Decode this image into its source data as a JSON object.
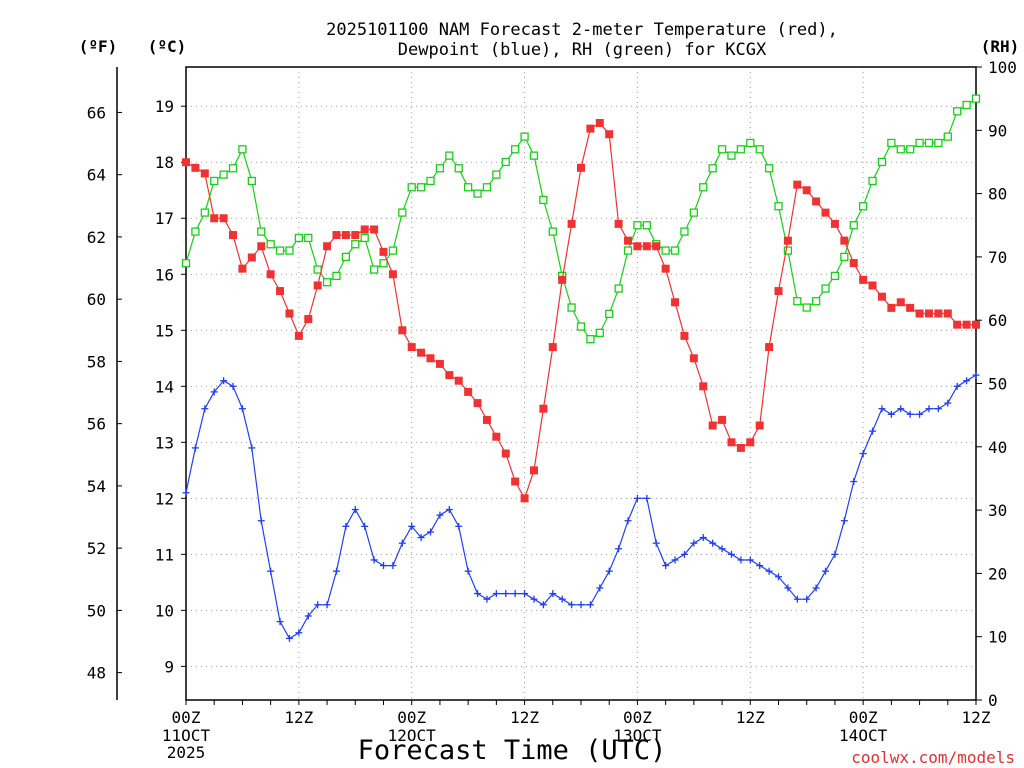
{
  "chart_data": {
    "type": "line",
    "title_line1": "2025101100 NAM Forecast 2-meter Temperature (red),",
    "title_line2": "Dewpoint (blue), RH (green) for KCGX",
    "xlabel": "Forecast Time (UTC)",
    "watermark": "coolwx.com/models",
    "axis_units": {
      "left_outer": "(ºF)",
      "left_inner": "(ºC)",
      "right": "(RH)"
    },
    "x_range_hours": [
      0,
      84
    ],
    "x_ticks": [
      {
        "hour": 0,
        "label": "00Z",
        "sub1": "11OCT",
        "sub2": "2025"
      },
      {
        "hour": 12,
        "label": "12Z",
        "sub1": "",
        "sub2": ""
      },
      {
        "hour": 24,
        "label": "00Z",
        "sub1": "12OCT",
        "sub2": ""
      },
      {
        "hour": 36,
        "label": "12Z",
        "sub1": "",
        "sub2": ""
      },
      {
        "hour": 48,
        "label": "00Z",
        "sub1": "13OCT",
        "sub2": ""
      },
      {
        "hour": 60,
        "label": "12Z",
        "sub1": "",
        "sub2": ""
      },
      {
        "hour": 72,
        "label": "00Z",
        "sub1": "14OCT",
        "sub2": ""
      },
      {
        "hour": 84,
        "label": "12Z",
        "sub1": "",
        "sub2": ""
      }
    ],
    "celsius_range": [
      8.4,
      19.7
    ],
    "celsius_ticks": [
      "9",
      "10",
      "11",
      "12",
      "13",
      "14",
      "15",
      "16",
      "17",
      "18",
      "19"
    ],
    "fahrenheit_ticks": [
      "48",
      "50",
      "52",
      "54",
      "56",
      "58",
      "60",
      "62",
      "64",
      "66"
    ],
    "rh_range": [
      0,
      100
    ],
    "rh_ticks": [
      "0",
      "10",
      "20",
      "30",
      "40",
      "50",
      "60",
      "70",
      "80",
      "90",
      "100"
    ],
    "colors": {
      "temperature": "#f03232",
      "dewpoint": "#2040f0",
      "rh": "#18d018",
      "grid": "#a0a0a0"
    },
    "series": [
      {
        "name": "Temperature",
        "units": "C",
        "marker": "filled-square",
        "x_hours": [
          0,
          1,
          2,
          3,
          4,
          5,
          6,
          7,
          8,
          9,
          10,
          11,
          12,
          13,
          14,
          15,
          16,
          17,
          18,
          19,
          20,
          21,
          22,
          23,
          24,
          25,
          26,
          27,
          28,
          29,
          30,
          31,
          32,
          33,
          34,
          35,
          36,
          37,
          38,
          39,
          40,
          41,
          42,
          43,
          44,
          45,
          46,
          47,
          48,
          49,
          50,
          51,
          52,
          53,
          54,
          55,
          56,
          57,
          58,
          59,
          60,
          61,
          62,
          63,
          64,
          65,
          66,
          67,
          68,
          69,
          70,
          71,
          72,
          73,
          74,
          75,
          76,
          77,
          78,
          79,
          80,
          81,
          82,
          83,
          84
        ],
        "values": [
          18.0,
          17.9,
          17.8,
          17.0,
          17.0,
          16.7,
          16.1,
          16.3,
          16.5,
          16.0,
          15.7,
          15.3,
          14.9,
          15.2,
          15.8,
          16.5,
          16.7,
          16.7,
          16.7,
          16.8,
          16.8,
          16.4,
          16.0,
          15.0,
          14.7,
          14.6,
          14.5,
          14.4,
          14.2,
          14.1,
          13.9,
          13.7,
          13.4,
          13.1,
          12.8,
          12.3,
          12.0,
          12.5,
          13.6,
          14.7,
          15.9,
          16.9,
          17.9,
          18.6,
          18.7,
          18.5,
          16.9,
          16.6,
          16.5,
          16.5,
          16.5,
          16.1,
          15.5,
          14.9,
          14.5,
          14.0,
          13.3,
          13.4,
          13.0,
          12.9,
          13.0,
          13.3,
          14.7,
          15.7,
          16.6,
          17.6,
          17.5,
          17.3,
          17.1,
          16.9,
          16.6,
          16.2,
          15.9,
          15.8,
          15.6,
          15.4,
          15.5,
          15.4,
          15.3,
          15.3,
          15.3,
          15.3,
          15.1,
          15.1,
          15.1
        ]
      },
      {
        "name": "Dewpoint",
        "units": "C",
        "marker": "plus",
        "x_hours": [
          0,
          1,
          2,
          3,
          4,
          5,
          6,
          7,
          8,
          9,
          10,
          11,
          12,
          13,
          14,
          15,
          16,
          17,
          18,
          19,
          20,
          21,
          22,
          23,
          24,
          25,
          26,
          27,
          28,
          29,
          30,
          31,
          32,
          33,
          34,
          35,
          36,
          37,
          38,
          39,
          40,
          41,
          42,
          43,
          44,
          45,
          46,
          47,
          48,
          49,
          50,
          51,
          52,
          53,
          54,
          55,
          56,
          57,
          58,
          59,
          60,
          61,
          62,
          63,
          64,
          65,
          66,
          67,
          68,
          69,
          70,
          71,
          72,
          73,
          74,
          75,
          76,
          77,
          78,
          79,
          80,
          81,
          82,
          83,
          84
        ],
        "values": [
          12.1,
          12.9,
          13.6,
          13.9,
          14.1,
          14.0,
          13.6,
          12.9,
          11.6,
          10.7,
          9.8,
          9.5,
          9.6,
          9.9,
          10.1,
          10.1,
          10.7,
          11.5,
          11.8,
          11.5,
          10.9,
          10.8,
          10.8,
          11.2,
          11.5,
          11.3,
          11.4,
          11.7,
          11.8,
          11.5,
          10.7,
          10.3,
          10.2,
          10.3,
          10.3,
          10.3,
          10.3,
          10.2,
          10.1,
          10.3,
          10.2,
          10.1,
          10.1,
          10.1,
          10.4,
          10.7,
          11.1,
          11.6,
          12.0,
          12.0,
          11.2,
          10.8,
          10.9,
          11.0,
          11.2,
          11.3,
          11.2,
          11.1,
          11.0,
          10.9,
          10.9,
          10.8,
          10.7,
          10.6,
          10.4,
          10.2,
          10.2,
          10.4,
          10.7,
          11.0,
          11.6,
          12.3,
          12.8,
          13.2,
          13.6,
          13.5,
          13.6,
          13.5,
          13.5,
          13.6,
          13.6,
          13.7,
          14.0,
          14.1,
          14.2
        ]
      },
      {
        "name": "RH",
        "units": "%",
        "marker": "open-square",
        "x_hours": [
          0,
          1,
          2,
          3,
          4,
          5,
          6,
          7,
          8,
          9,
          10,
          11,
          12,
          13,
          14,
          15,
          16,
          17,
          18,
          19,
          20,
          21,
          22,
          23,
          24,
          25,
          26,
          27,
          28,
          29,
          30,
          31,
          32,
          33,
          34,
          35,
          36,
          37,
          38,
          39,
          40,
          41,
          42,
          43,
          44,
          45,
          46,
          47,
          48,
          49,
          50,
          51,
          52,
          53,
          54,
          55,
          56,
          57,
          58,
          59,
          60,
          61,
          62,
          63,
          64,
          65,
          66,
          67,
          68,
          69,
          70,
          71,
          72,
          73,
          74,
          75,
          76,
          77,
          78,
          79,
          80,
          81,
          82,
          83,
          84
        ],
        "values": [
          69,
          74,
          77,
          82,
          83,
          84,
          87,
          82,
          74,
          72,
          71,
          71,
          73,
          73,
          68,
          66,
          67,
          70,
          72,
          73,
          68,
          69,
          71,
          77,
          81,
          81,
          82,
          84,
          86,
          84,
          81,
          80,
          81,
          83,
          85,
          87,
          89,
          86,
          79,
          74,
          67,
          62,
          59,
          57,
          58,
          61,
          65,
          71,
          75,
          75,
          72,
          71,
          71,
          74,
          77,
          81,
          84,
          87,
          86,
          87,
          88,
          87,
          84,
          78,
          71,
          63,
          62,
          63,
          65,
          67,
          70,
          75,
          78,
          82,
          85,
          88,
          87,
          87,
          88,
          88,
          88,
          89,
          93,
          94,
          95
        ]
      }
    ]
  }
}
